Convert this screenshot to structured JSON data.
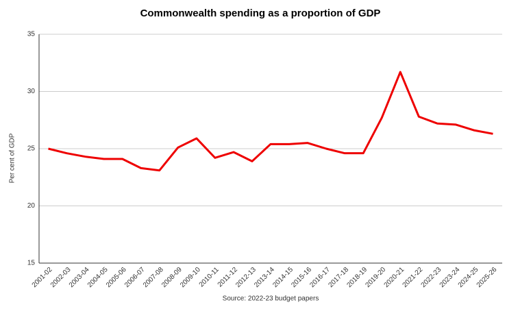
{
  "chart_data": {
    "type": "line",
    "title": "Commonwealth spending as a proportion of GDP",
    "x_label": "Source: 2022-23 budget papers",
    "y_label": "Per cent of GDP",
    "categories": [
      "2001-02",
      "2002-03",
      "2003-04",
      "2004-05",
      "2005-06",
      "2006-07",
      "2007-08",
      "2008-09",
      "2009-10",
      "2010-11",
      "2011-12",
      "2012-13",
      "2013-14",
      "2014-15",
      "2015-16",
      "2016-17",
      "2017-18",
      "2018-19",
      "2019-20",
      "2020-21",
      "2021-22",
      "2022-23",
      "2023-24",
      "2024-25",
      "2025-26"
    ],
    "values": [
      25.0,
      24.6,
      24.3,
      24.1,
      24.1,
      23.3,
      23.1,
      25.1,
      25.9,
      24.2,
      24.7,
      23.9,
      25.4,
      25.4,
      25.5,
      25.0,
      24.6,
      24.6,
      27.7,
      31.7,
      27.8,
      27.2,
      27.1,
      26.6,
      26.3
    ],
    "color": "#ee0000",
    "ylim": [
      15,
      35
    ],
    "yticks": [
      15,
      20,
      25,
      30,
      35
    ],
    "grid": true
  }
}
